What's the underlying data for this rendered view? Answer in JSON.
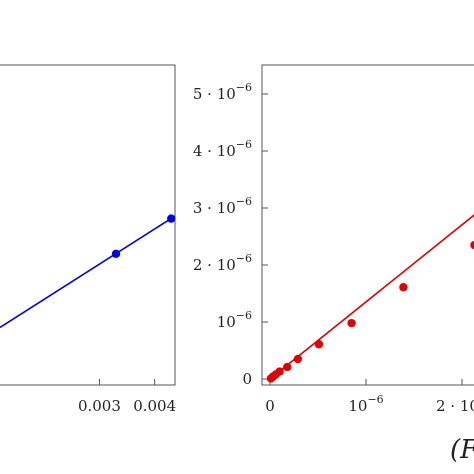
{
  "chart_data": [
    {
      "type": "scatter",
      "title": "",
      "xlabel": "",
      "ylabel": "",
      "xlim": [
        0.0012,
        0.00435
      ],
      "x_ticks": [
        {
          "value": 0.003,
          "label": "0.003"
        },
        {
          "value": 0.004,
          "label": "0.004"
        }
      ],
      "y_ticks": [],
      "series": [
        {
          "color": "#0000e0",
          "points": [
            {
              "x": 0.0033,
              "y": 0.41
            },
            {
              "x": 0.0043,
              "y": 0.52
            }
          ],
          "fit_line": {
            "x": [
              0.0012,
              0.00435
            ],
            "y": [
              0.18,
              0.526
            ]
          }
        }
      ]
    },
    {
      "type": "scatter",
      "title": "",
      "xlabel": "(F",
      "ylabel": "",
      "xlim": [
        -8e-08,
        2.65e-06
      ],
      "ylim": [
        -1.5e-07,
        5.4e-06
      ],
      "x_ticks": [
        {
          "value": 0,
          "label": "0"
        },
        {
          "value": 1e-06,
          "label": "10",
          "exp": "−6"
        },
        {
          "value": 2e-06,
          "label": "2 · 10"
        }
      ],
      "y_ticks": [
        {
          "value": 0,
          "label": "0"
        },
        {
          "value": 1e-06,
          "label": "10",
          "exp": "−6"
        },
        {
          "value": 2e-06,
          "label": "2 · 10",
          "exp": "−6"
        },
        {
          "value": 3e-06,
          "label": "3 · 10",
          "exp": "−6"
        },
        {
          "value": 4e-06,
          "label": "4 · 10",
          "exp": "−6"
        },
        {
          "value": 5e-06,
          "label": "5 · 10",
          "exp": "−6"
        }
      ],
      "series": [
        {
          "color": "#e00000",
          "points": [
            {
              "x": 1e-08,
              "y": 1e-08
            },
            {
              "x": 3e-08,
              "y": 4e-08
            },
            {
              "x": 6e-08,
              "y": 8e-08
            },
            {
              "x": 1e-07,
              "y": 1.3e-07
            },
            {
              "x": 1.8e-07,
              "y": 2.1e-07
            },
            {
              "x": 2.9e-07,
              "y": 3.5e-07
            },
            {
              "x": 5.1e-07,
              "y": 6.1e-07
            },
            {
              "x": 8.5e-07,
              "y": 9.8e-07
            },
            {
              "x": 1.39e-06,
              "y": 1.61e-06
            },
            {
              "x": 2.13e-06,
              "y": 2.35e-06
            }
          ],
          "fit_line": {
            "x": [
              0,
              2.65e-06
            ],
            "y": [
              0,
              2.93e-06
            ]
          }
        }
      ]
    }
  ]
}
